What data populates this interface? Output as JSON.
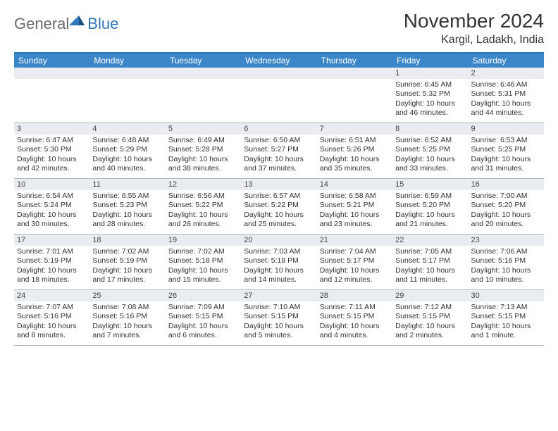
{
  "logo": {
    "part1": "General",
    "part2": "Blue"
  },
  "title": "November 2024",
  "location": "Kargil, Ladakh, India",
  "colors": {
    "header_bar": "#3a86c8",
    "accent_line": "#2f76bb",
    "daynum_bg": "#e9edf1",
    "grid_line": "#b0b5bb",
    "text": "#333333",
    "logo_grey": "#6b6b6b",
    "logo_blue": "#2f76bb"
  },
  "day_headers": [
    "Sunday",
    "Monday",
    "Tuesday",
    "Wednesday",
    "Thursday",
    "Friday",
    "Saturday"
  ],
  "weeks": [
    [
      {
        "blank": true
      },
      {
        "blank": true
      },
      {
        "blank": true
      },
      {
        "blank": true
      },
      {
        "blank": true
      },
      {
        "n": "1",
        "sunrise": "Sunrise: 6:45 AM",
        "sunset": "Sunset: 5:32 PM",
        "daylight": "Daylight: 10 hours and 46 minutes."
      },
      {
        "n": "2",
        "sunrise": "Sunrise: 6:46 AM",
        "sunset": "Sunset: 5:31 PM",
        "daylight": "Daylight: 10 hours and 44 minutes."
      }
    ],
    [
      {
        "n": "3",
        "sunrise": "Sunrise: 6:47 AM",
        "sunset": "Sunset: 5:30 PM",
        "daylight": "Daylight: 10 hours and 42 minutes."
      },
      {
        "n": "4",
        "sunrise": "Sunrise: 6:48 AM",
        "sunset": "Sunset: 5:29 PM",
        "daylight": "Daylight: 10 hours and 40 minutes."
      },
      {
        "n": "5",
        "sunrise": "Sunrise: 6:49 AM",
        "sunset": "Sunset: 5:28 PM",
        "daylight": "Daylight: 10 hours and 38 minutes."
      },
      {
        "n": "6",
        "sunrise": "Sunrise: 6:50 AM",
        "sunset": "Sunset: 5:27 PM",
        "daylight": "Daylight: 10 hours and 37 minutes."
      },
      {
        "n": "7",
        "sunrise": "Sunrise: 6:51 AM",
        "sunset": "Sunset: 5:26 PM",
        "daylight": "Daylight: 10 hours and 35 minutes."
      },
      {
        "n": "8",
        "sunrise": "Sunrise: 6:52 AM",
        "sunset": "Sunset: 5:25 PM",
        "daylight": "Daylight: 10 hours and 33 minutes."
      },
      {
        "n": "9",
        "sunrise": "Sunrise: 6:53 AM",
        "sunset": "Sunset: 5:25 PM",
        "daylight": "Daylight: 10 hours and 31 minutes."
      }
    ],
    [
      {
        "n": "10",
        "sunrise": "Sunrise: 6:54 AM",
        "sunset": "Sunset: 5:24 PM",
        "daylight": "Daylight: 10 hours and 30 minutes."
      },
      {
        "n": "11",
        "sunrise": "Sunrise: 6:55 AM",
        "sunset": "Sunset: 5:23 PM",
        "daylight": "Daylight: 10 hours and 28 minutes."
      },
      {
        "n": "12",
        "sunrise": "Sunrise: 6:56 AM",
        "sunset": "Sunset: 5:22 PM",
        "daylight": "Daylight: 10 hours and 26 minutes."
      },
      {
        "n": "13",
        "sunrise": "Sunrise: 6:57 AM",
        "sunset": "Sunset: 5:22 PM",
        "daylight": "Daylight: 10 hours and 25 minutes."
      },
      {
        "n": "14",
        "sunrise": "Sunrise: 6:58 AM",
        "sunset": "Sunset: 5:21 PM",
        "daylight": "Daylight: 10 hours and 23 minutes."
      },
      {
        "n": "15",
        "sunrise": "Sunrise: 6:59 AM",
        "sunset": "Sunset: 5:20 PM",
        "daylight": "Daylight: 10 hours and 21 minutes."
      },
      {
        "n": "16",
        "sunrise": "Sunrise: 7:00 AM",
        "sunset": "Sunset: 5:20 PM",
        "daylight": "Daylight: 10 hours and 20 minutes."
      }
    ],
    [
      {
        "n": "17",
        "sunrise": "Sunrise: 7:01 AM",
        "sunset": "Sunset: 5:19 PM",
        "daylight": "Daylight: 10 hours and 18 minutes."
      },
      {
        "n": "18",
        "sunrise": "Sunrise: 7:02 AM",
        "sunset": "Sunset: 5:19 PM",
        "daylight": "Daylight: 10 hours and 17 minutes."
      },
      {
        "n": "19",
        "sunrise": "Sunrise: 7:02 AM",
        "sunset": "Sunset: 5:18 PM",
        "daylight": "Daylight: 10 hours and 15 minutes."
      },
      {
        "n": "20",
        "sunrise": "Sunrise: 7:03 AM",
        "sunset": "Sunset: 5:18 PM",
        "daylight": "Daylight: 10 hours and 14 minutes."
      },
      {
        "n": "21",
        "sunrise": "Sunrise: 7:04 AM",
        "sunset": "Sunset: 5:17 PM",
        "daylight": "Daylight: 10 hours and 12 minutes."
      },
      {
        "n": "22",
        "sunrise": "Sunrise: 7:05 AM",
        "sunset": "Sunset: 5:17 PM",
        "daylight": "Daylight: 10 hours and 11 minutes."
      },
      {
        "n": "23",
        "sunrise": "Sunrise: 7:06 AM",
        "sunset": "Sunset: 5:16 PM",
        "daylight": "Daylight: 10 hours and 10 minutes."
      }
    ],
    [
      {
        "n": "24",
        "sunrise": "Sunrise: 7:07 AM",
        "sunset": "Sunset: 5:16 PM",
        "daylight": "Daylight: 10 hours and 8 minutes."
      },
      {
        "n": "25",
        "sunrise": "Sunrise: 7:08 AM",
        "sunset": "Sunset: 5:16 PM",
        "daylight": "Daylight: 10 hours and 7 minutes."
      },
      {
        "n": "26",
        "sunrise": "Sunrise: 7:09 AM",
        "sunset": "Sunset: 5:15 PM",
        "daylight": "Daylight: 10 hours and 6 minutes."
      },
      {
        "n": "27",
        "sunrise": "Sunrise: 7:10 AM",
        "sunset": "Sunset: 5:15 PM",
        "daylight": "Daylight: 10 hours and 5 minutes."
      },
      {
        "n": "28",
        "sunrise": "Sunrise: 7:11 AM",
        "sunset": "Sunset: 5:15 PM",
        "daylight": "Daylight: 10 hours and 4 minutes."
      },
      {
        "n": "29",
        "sunrise": "Sunrise: 7:12 AM",
        "sunset": "Sunset: 5:15 PM",
        "daylight": "Daylight: 10 hours and 2 minutes."
      },
      {
        "n": "30",
        "sunrise": "Sunrise: 7:13 AM",
        "sunset": "Sunset: 5:15 PM",
        "daylight": "Daylight: 10 hours and 1 minute."
      }
    ]
  ]
}
